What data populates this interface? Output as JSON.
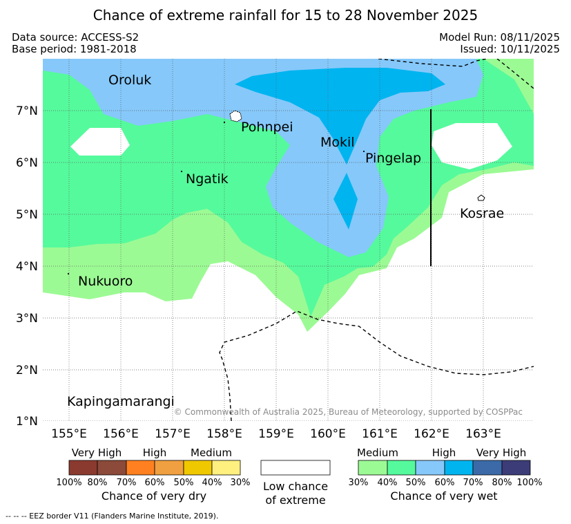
{
  "header": {
    "title": "Chance of extreme rainfall for 15 to 28 November 2025",
    "data_source": "Data source: ACCESS-S2",
    "base_period": "Base period: 1981-2018",
    "model_run": "Model Run: 08/11/2025",
    "issued": "Issued: 10/11/2025"
  },
  "map": {
    "places": [
      "Oroluk",
      "Pohnpei",
      "Mokil",
      "Pingelap",
      "Ngatik",
      "Kosrae",
      "Nukuoro",
      "Kapingamarangi"
    ],
    "lat_ticks": [
      "7°N",
      "6°N",
      "5°N",
      "4°N",
      "3°N",
      "2°N",
      "1°N"
    ],
    "lon_ticks": [
      "155°E",
      "156°E",
      "157°E",
      "158°E",
      "159°E",
      "160°E",
      "161°E",
      "162°E",
      "163°E"
    ],
    "copyright": "© Commonwealth of Australia 2025, Bureau of Meteorology, supported by COSPPac"
  },
  "legend": {
    "dry": {
      "categories": [
        "Very High",
        "High",
        "Medium"
      ],
      "percents": [
        "100%",
        "80%",
        "70%",
        "60%",
        "50%",
        "40%",
        "30%"
      ],
      "colors": [
        "#8b3a2f",
        "#8b4a3a",
        "#ff8020",
        "#f0a040",
        "#f0c800",
        "#fff080"
      ],
      "caption": "Chance of very dry"
    },
    "neutral": {
      "caption_line1": "Low chance",
      "caption_line2": "of extreme"
    },
    "wet": {
      "categories": [
        "Medium",
        "High",
        "Very High"
      ],
      "percents": [
        "30%",
        "40%",
        "50%",
        "60%",
        "70%",
        "80%",
        "100%"
      ],
      "colors": [
        "#9cfa94",
        "#55fa9c",
        "#86c8fa",
        "#00b4ef",
        "#3c6aa8",
        "#3c3c78"
      ],
      "caption": "Chance of very wet"
    }
  },
  "footnote": "--  --  -- EEZ border V11 (Flanders Marine Institute, 2019).",
  "colors": {
    "medium_wet": "#9cfa94",
    "med_high_wet": "#55fa9c",
    "high_wet": "#86c8fa",
    "very_high_wet": "#00b4ef"
  }
}
